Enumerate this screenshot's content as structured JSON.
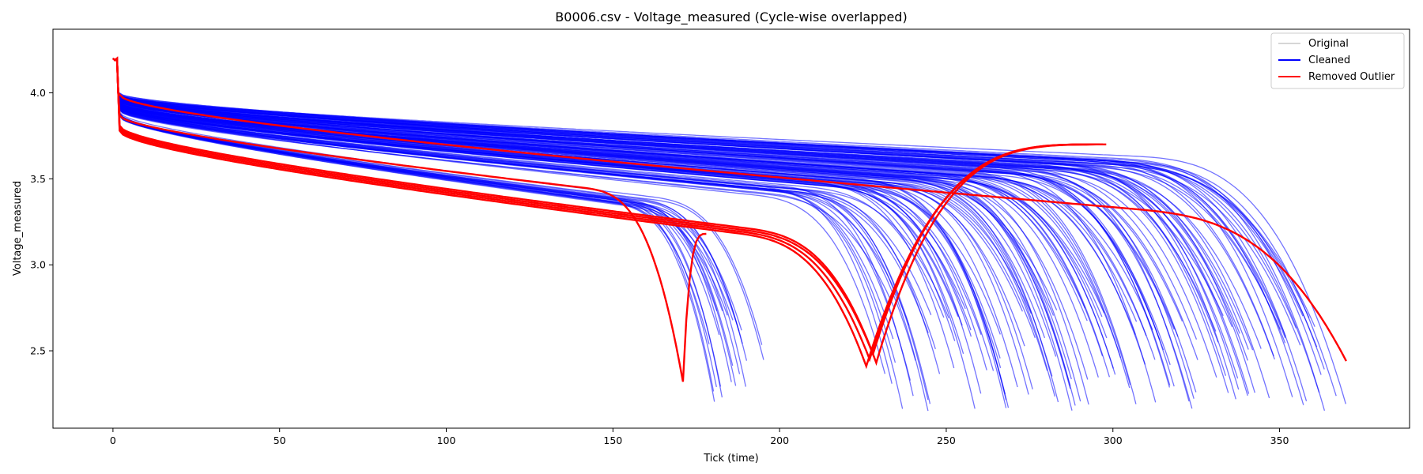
{
  "chart_data": {
    "type": "line",
    "title": "B0006.csv - Voltage_measured (Cycle-wise overlapped)",
    "xlabel": "Tick (time)",
    "ylabel": "Voltage_measured",
    "xlim": [
      -18,
      389
    ],
    "ylim": [
      2.05,
      4.37
    ],
    "xticks": [
      0,
      50,
      100,
      150,
      200,
      250,
      300,
      350
    ],
    "yticks": [
      2.5,
      3.0,
      3.5,
      4.0
    ],
    "tick_labels_x": [
      "0",
      "50",
      "100",
      "150",
      "200",
      "250",
      "300",
      "350"
    ],
    "tick_labels_y": [
      "2.5",
      "3.0",
      "3.5",
      "4.0"
    ],
    "grid": false,
    "legend_position": "top-right",
    "colors": {
      "original": "#c8c8c8",
      "cleaned": "#0000ff",
      "removed": "#ff0000"
    },
    "legend": [
      {
        "label": "Original",
        "color": "#c8c8c8"
      },
      {
        "label": "Cleaned",
        "color": "#0000ff"
      },
      {
        "label": "Removed Outlier",
        "color": "#ff0000"
      }
    ],
    "series": [
      {
        "name": "Cleaned",
        "kind": "discharge",
        "cycles": 160,
        "end_tick_range": [
          178,
          365
        ],
        "start_voltage": 4.2,
        "cutoff_voltage_range": [
          2.15,
          2.75
        ]
      },
      {
        "name": "Removed Outlier",
        "kind": "discharge",
        "curves": [
          {
            "end": 171,
            "vmin": 2.32,
            "plateau": [
              3.87,
              3.38
            ],
            "rise_to": 3.18,
            "rise_ticks": 7
          },
          {
            "end": 226,
            "vmin": 2.41,
            "plateau": [
              3.78,
              3.09
            ],
            "rise_to": 3.7,
            "rise_ticks": 72
          },
          {
            "end": 227,
            "vmin": 2.45,
            "plateau": [
              3.79,
              3.1
            ],
            "rise_to": 3.7,
            "rise_ticks": 70
          },
          {
            "end": 228,
            "vmin": 2.48,
            "plateau": [
              3.8,
              3.11
            ],
            "rise_to": 3.7,
            "rise_ticks": 68
          },
          {
            "end": 229,
            "vmin": 2.43,
            "plateau": [
              3.81,
              3.12
            ],
            "rise_to": 3.7,
            "rise_ticks": 67
          },
          {
            "end": 370,
            "vmin": 2.44,
            "plateau": [
              3.99,
              3.22
            ],
            "rise_to": null,
            "rise_ticks": 0
          }
        ]
      }
    ]
  }
}
